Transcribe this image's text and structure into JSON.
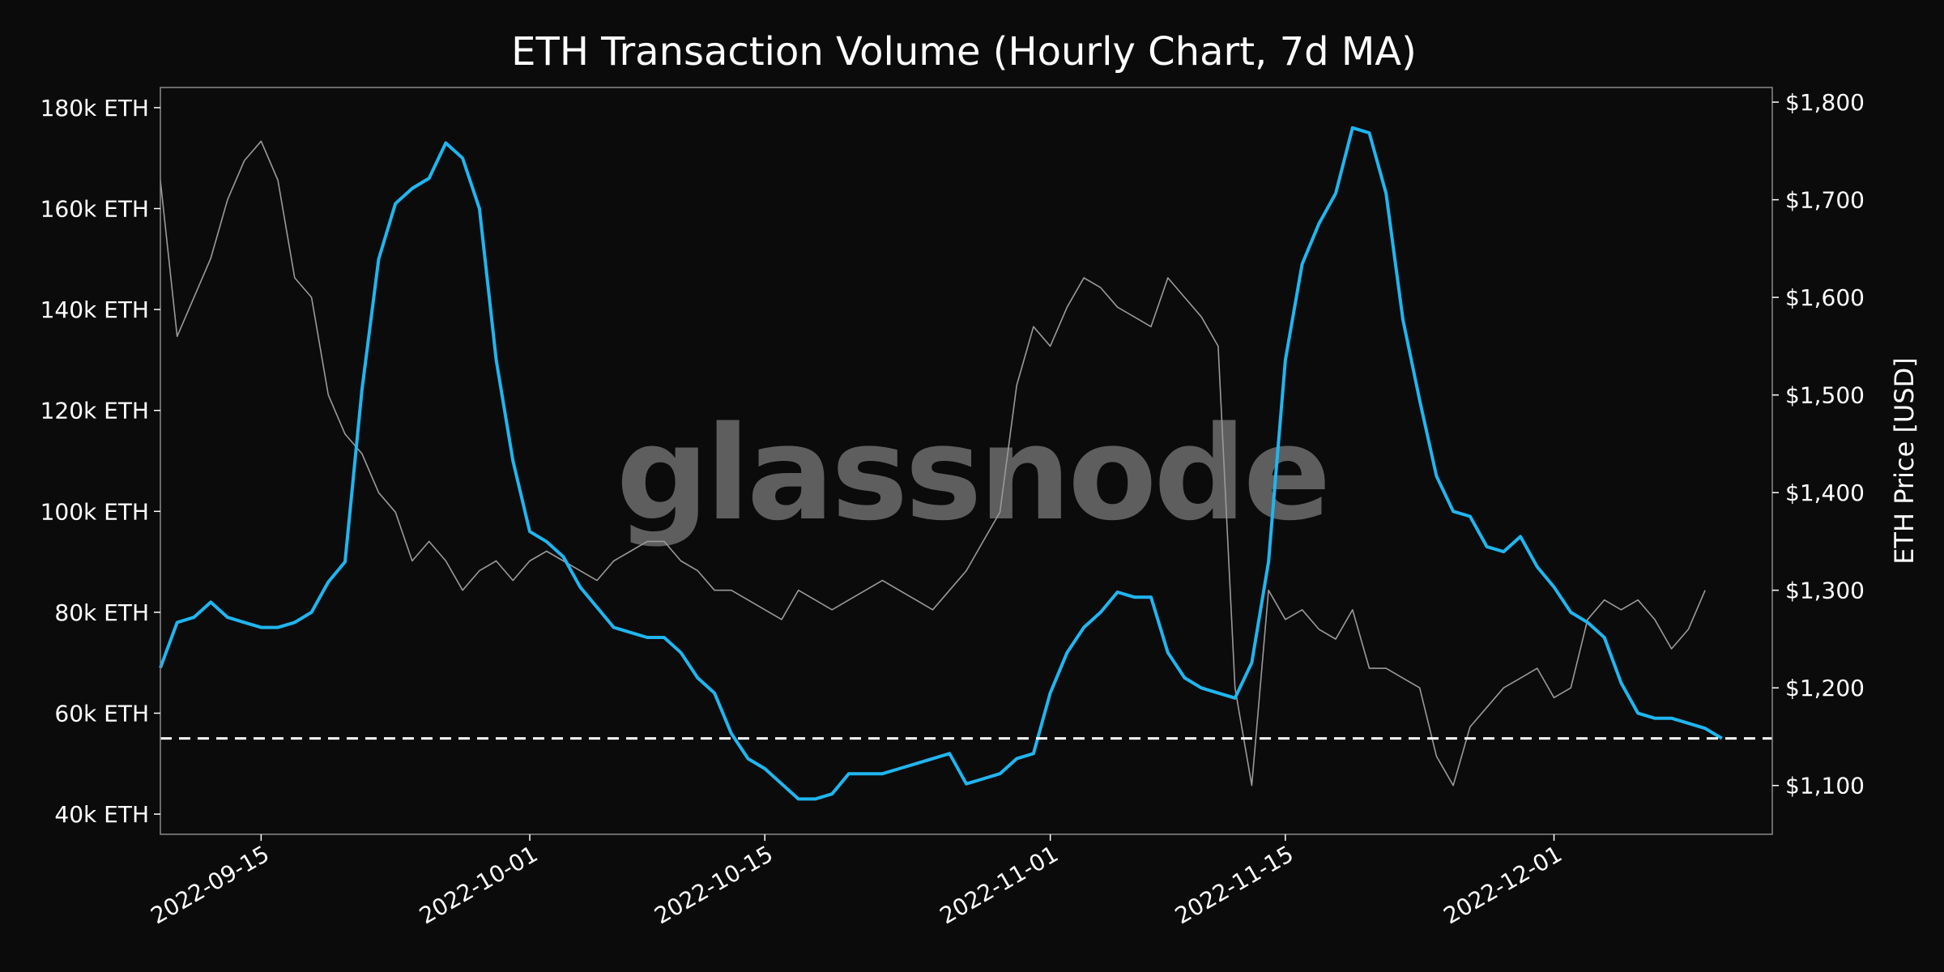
{
  "chart_data": {
    "type": "line",
    "title": "ETH Transaction Volume (Hourly Chart, 7d MA)",
    "watermark": "glassnode",
    "x_range": [
      "2022-09-09",
      "2022-12-14"
    ],
    "x_ticks": [
      "2022-09-15",
      "2022-10-01",
      "2022-10-15",
      "2022-11-01",
      "2022-11-15",
      "2022-12-01"
    ],
    "y_left": {
      "label": "",
      "range": [
        36000,
        184000
      ],
      "ticks": [
        40000,
        60000,
        80000,
        100000,
        120000,
        140000,
        160000,
        180000
      ],
      "tick_labels": [
        "40k ETH",
        "60k ETH",
        "80k ETH",
        "100k ETH",
        "120k ETH",
        "140k ETH",
        "160k ETH",
        "180k ETH"
      ]
    },
    "y_right": {
      "label": "ETH Price [USD]",
      "range": [
        1050,
        1815
      ],
      "ticks": [
        1100,
        1200,
        1300,
        1400,
        1500,
        1600,
        1700,
        1800
      ],
      "tick_labels": [
        "$1,100",
        "$1,200",
        "$1,300",
        "$1,400",
        "$1,500",
        "$1,600",
        "$1,700",
        "$1,800"
      ]
    },
    "reference_line": {
      "axis": "left",
      "value": 55000,
      "style": "dashed",
      "color": "#ffffff"
    },
    "grid": false,
    "colors": {
      "volume": "#1fb6f0",
      "price": "#9a9a9a",
      "background": "#0b0b0b",
      "frame": "#8a8a8a"
    },
    "series": [
      {
        "axis": "left",
        "color": "#1fb6f0",
        "points": [
          [
            "2022-09-09",
            69000
          ],
          [
            "2022-09-10",
            78000
          ],
          [
            "2022-09-11",
            79000
          ],
          [
            "2022-09-12",
            82000
          ],
          [
            "2022-09-13",
            79000
          ],
          [
            "2022-09-14",
            78000
          ],
          [
            "2022-09-15",
            77000
          ],
          [
            "2022-09-16",
            77000
          ],
          [
            "2022-09-17",
            78000
          ],
          [
            "2022-09-18",
            80000
          ],
          [
            "2022-09-19",
            86000
          ],
          [
            "2022-09-20",
            90000
          ],
          [
            "2022-09-21",
            124000
          ],
          [
            "2022-09-22",
            150000
          ],
          [
            "2022-09-23",
            161000
          ],
          [
            "2022-09-24",
            164000
          ],
          [
            "2022-09-25",
            166000
          ],
          [
            "2022-09-26",
            173000
          ],
          [
            "2022-09-27",
            170000
          ],
          [
            "2022-09-28",
            160000
          ],
          [
            "2022-09-29",
            130000
          ],
          [
            "2022-09-30",
            110000
          ],
          [
            "2022-10-01",
            96000
          ],
          [
            "2022-10-02",
            94000
          ],
          [
            "2022-10-03",
            91000
          ],
          [
            "2022-10-04",
            85000
          ],
          [
            "2022-10-05",
            81000
          ],
          [
            "2022-10-06",
            77000
          ],
          [
            "2022-10-07",
            76000
          ],
          [
            "2022-10-08",
            75000
          ],
          [
            "2022-10-09",
            75000
          ],
          [
            "2022-10-10",
            72000
          ],
          [
            "2022-10-11",
            67000
          ],
          [
            "2022-10-12",
            64000
          ],
          [
            "2022-10-13",
            56000
          ],
          [
            "2022-10-14",
            51000
          ],
          [
            "2022-10-15",
            49000
          ],
          [
            "2022-10-16",
            46000
          ],
          [
            "2022-10-17",
            43000
          ],
          [
            "2022-10-18",
            43000
          ],
          [
            "2022-10-19",
            44000
          ],
          [
            "2022-10-20",
            48000
          ],
          [
            "2022-10-21",
            48000
          ],
          [
            "2022-10-22",
            48000
          ],
          [
            "2022-10-23",
            49000
          ],
          [
            "2022-10-24",
            50000
          ],
          [
            "2022-10-25",
            51000
          ],
          [
            "2022-10-26",
            52000
          ],
          [
            "2022-10-27",
            46000
          ],
          [
            "2022-10-28",
            47000
          ],
          [
            "2022-10-29",
            48000
          ],
          [
            "2022-10-30",
            51000
          ],
          [
            "2022-10-31",
            52000
          ],
          [
            "2022-11-01",
            64000
          ],
          [
            "2022-11-02",
            72000
          ],
          [
            "2022-11-03",
            77000
          ],
          [
            "2022-11-04",
            80000
          ],
          [
            "2022-11-05",
            84000
          ],
          [
            "2022-11-06",
            83000
          ],
          [
            "2022-11-07",
            83000
          ],
          [
            "2022-11-08",
            72000
          ],
          [
            "2022-11-09",
            67000
          ],
          [
            "2022-11-10",
            65000
          ],
          [
            "2022-11-11",
            64000
          ],
          [
            "2022-11-12",
            63000
          ],
          [
            "2022-11-13",
            70000
          ],
          [
            "2022-11-14",
            90000
          ],
          [
            "2022-11-15",
            130000
          ],
          [
            "2022-11-16",
            149000
          ],
          [
            "2022-11-17",
            157000
          ],
          [
            "2022-11-18",
            163000
          ],
          [
            "2022-11-19",
            176000
          ],
          [
            "2022-11-20",
            175000
          ],
          [
            "2022-11-21",
            163000
          ],
          [
            "2022-11-22",
            138000
          ],
          [
            "2022-11-23",
            122000
          ],
          [
            "2022-11-24",
            107000
          ],
          [
            "2022-11-25",
            100000
          ],
          [
            "2022-11-26",
            99000
          ],
          [
            "2022-11-27",
            93000
          ],
          [
            "2022-11-28",
            92000
          ],
          [
            "2022-11-29",
            95000
          ],
          [
            "2022-11-30",
            89000
          ],
          [
            "2022-12-01",
            85000
          ],
          [
            "2022-12-02",
            80000
          ],
          [
            "2022-12-03",
            78000
          ],
          [
            "2022-12-04",
            75000
          ],
          [
            "2022-12-05",
            66000
          ],
          [
            "2022-12-06",
            60000
          ],
          [
            "2022-12-07",
            59000
          ],
          [
            "2022-12-08",
            59000
          ],
          [
            "2022-12-09",
            58000
          ],
          [
            "2022-12-10",
            57000
          ],
          [
            "2022-12-11",
            55000
          ]
        ]
      },
      {
        "axis": "right",
        "color": "#9a9a9a",
        "points": [
          [
            "2022-09-09",
            1720
          ],
          [
            "2022-09-10",
            1560
          ],
          [
            "2022-09-11",
            1600
          ],
          [
            "2022-09-12",
            1640
          ],
          [
            "2022-09-13",
            1700
          ],
          [
            "2022-09-14",
            1740
          ],
          [
            "2022-09-15",
            1760
          ],
          [
            "2022-09-16",
            1720
          ],
          [
            "2022-09-17",
            1620
          ],
          [
            "2022-09-18",
            1600
          ],
          [
            "2022-09-19",
            1500
          ],
          [
            "2022-09-20",
            1460
          ],
          [
            "2022-09-21",
            1440
          ],
          [
            "2022-09-22",
            1400
          ],
          [
            "2022-09-23",
            1380
          ],
          [
            "2022-09-24",
            1330
          ],
          [
            "2022-09-25",
            1350
          ],
          [
            "2022-09-26",
            1330
          ],
          [
            "2022-09-27",
            1300
          ],
          [
            "2022-09-28",
            1320
          ],
          [
            "2022-09-29",
            1330
          ],
          [
            "2022-09-30",
            1310
          ],
          [
            "2022-10-01",
            1330
          ],
          [
            "2022-10-02",
            1340
          ],
          [
            "2022-10-03",
            1330
          ],
          [
            "2022-10-04",
            1320
          ],
          [
            "2022-10-05",
            1310
          ],
          [
            "2022-10-06",
            1330
          ],
          [
            "2022-10-07",
            1340
          ],
          [
            "2022-10-08",
            1350
          ],
          [
            "2022-10-09",
            1350
          ],
          [
            "2022-10-10",
            1330
          ],
          [
            "2022-10-11",
            1320
          ],
          [
            "2022-10-12",
            1300
          ],
          [
            "2022-10-13",
            1300
          ],
          [
            "2022-10-14",
            1290
          ],
          [
            "2022-10-15",
            1280
          ],
          [
            "2022-10-16",
            1270
          ],
          [
            "2022-10-17",
            1300
          ],
          [
            "2022-10-18",
            1290
          ],
          [
            "2022-10-19",
            1280
          ],
          [
            "2022-10-20",
            1290
          ],
          [
            "2022-10-21",
            1300
          ],
          [
            "2022-10-22",
            1310
          ],
          [
            "2022-10-23",
            1300
          ],
          [
            "2022-10-24",
            1290
          ],
          [
            "2022-10-25",
            1280
          ],
          [
            "2022-10-26",
            1300
          ],
          [
            "2022-10-27",
            1320
          ],
          [
            "2022-10-28",
            1350
          ],
          [
            "2022-10-29",
            1380
          ],
          [
            "2022-10-30",
            1510
          ],
          [
            "2022-10-31",
            1570
          ],
          [
            "2022-11-01",
            1550
          ],
          [
            "2022-11-02",
            1590
          ],
          [
            "2022-11-03",
            1620
          ],
          [
            "2022-11-04",
            1610
          ],
          [
            "2022-11-05",
            1590
          ],
          [
            "2022-11-06",
            1580
          ],
          [
            "2022-11-07",
            1570
          ],
          [
            "2022-11-08",
            1620
          ],
          [
            "2022-11-09",
            1600
          ],
          [
            "2022-11-10",
            1580
          ],
          [
            "2022-11-11",
            1550
          ],
          [
            "2022-11-12",
            1200
          ],
          [
            "2022-11-13",
            1100
          ],
          [
            "2022-11-14",
            1300
          ],
          [
            "2022-11-15",
            1270
          ],
          [
            "2022-11-16",
            1280
          ],
          [
            "2022-11-17",
            1260
          ],
          [
            "2022-11-18",
            1250
          ],
          [
            "2022-11-19",
            1280
          ],
          [
            "2022-11-20",
            1220
          ],
          [
            "2022-11-21",
            1220
          ],
          [
            "2022-11-22",
            1210
          ],
          [
            "2022-11-23",
            1200
          ],
          [
            "2022-11-24",
            1130
          ],
          [
            "2022-11-25",
            1100
          ],
          [
            "2022-11-26",
            1160
          ],
          [
            "2022-11-27",
            1180
          ],
          [
            "2022-11-28",
            1200
          ],
          [
            "2022-11-29",
            1210
          ],
          [
            "2022-11-30",
            1220
          ],
          [
            "2022-12-01",
            1190
          ],
          [
            "2022-12-02",
            1200
          ],
          [
            "2022-12-03",
            1270
          ],
          [
            "2022-12-04",
            1290
          ],
          [
            "2022-12-05",
            1280
          ],
          [
            "2022-12-06",
            1290
          ],
          [
            "2022-12-07",
            1270
          ],
          [
            "2022-12-08",
            1240
          ],
          [
            "2022-12-09",
            1260
          ],
          [
            "2022-12-10",
            1300
          ]
        ]
      }
    ]
  }
}
